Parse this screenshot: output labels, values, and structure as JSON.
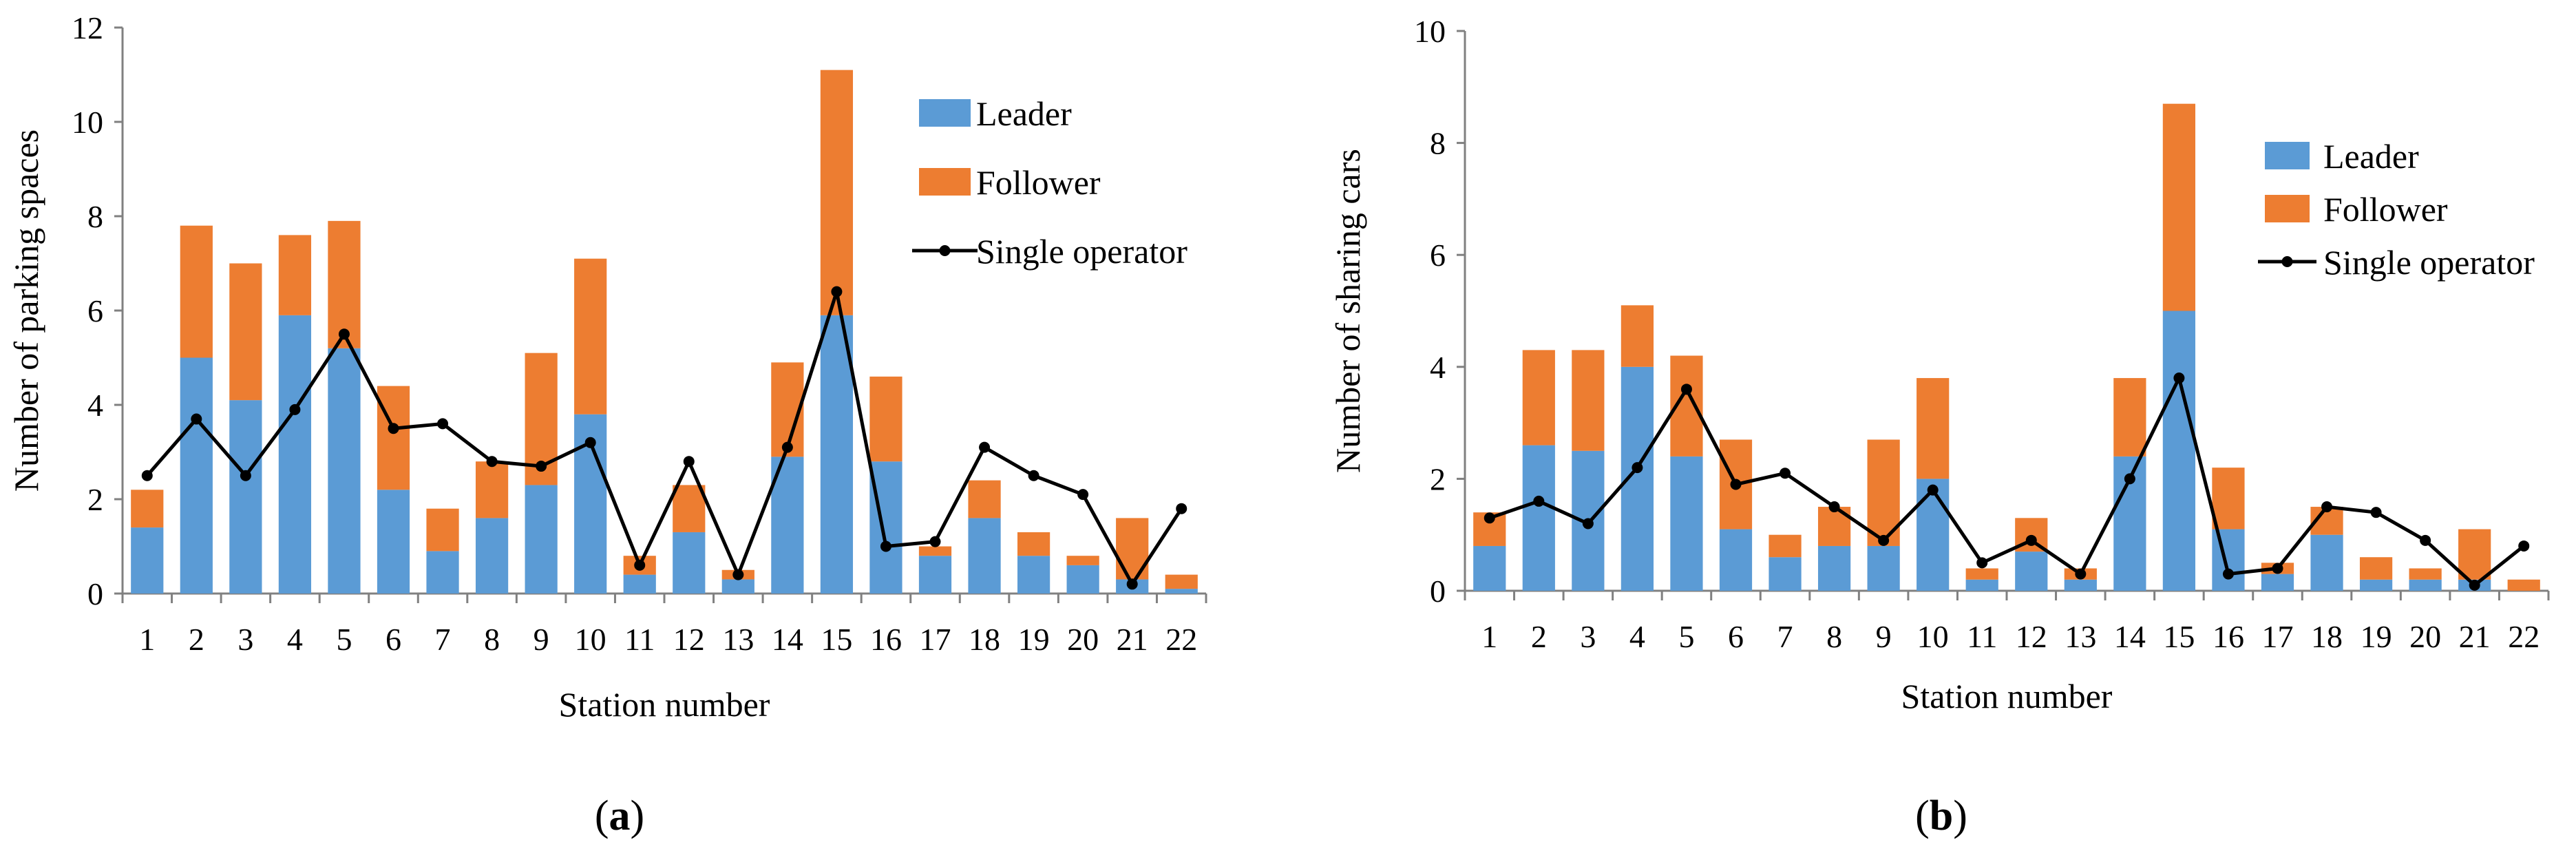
{
  "colors": {
    "leader": "#5b9bd5",
    "follower": "#ed7d31",
    "single": "#000000",
    "axis": "#808080"
  },
  "chart_data": [
    {
      "id": "a",
      "type": "bar",
      "stacked": true,
      "xlabel": "Station number",
      "ylabel": "Number of parking spaces",
      "ylim": [
        0,
        12
      ],
      "yticks": [
        0,
        2,
        4,
        6,
        8,
        10,
        12
      ],
      "categories": [
        "1",
        "2",
        "3",
        "4",
        "5",
        "6",
        "7",
        "8",
        "9",
        "10",
        "11",
        "12",
        "13",
        "14",
        "15",
        "16",
        "17",
        "18",
        "19",
        "20",
        "21",
        "22"
      ],
      "series": [
        {
          "name": "Leader",
          "kind": "bar",
          "values": [
            1.4,
            5.0,
            4.1,
            5.9,
            5.2,
            2.2,
            0.9,
            1.6,
            2.3,
            3.8,
            0.4,
            1.3,
            0.3,
            2.9,
            5.9,
            2.8,
            0.8,
            1.6,
            0.8,
            0.6,
            0.3,
            0.1
          ]
        },
        {
          "name": "Follower",
          "kind": "bar",
          "values": [
            0.8,
            2.8,
            2.9,
            1.7,
            2.7,
            2.2,
            0.9,
            1.2,
            2.8,
            3.3,
            0.4,
            1.0,
            0.2,
            2.0,
            5.2,
            1.8,
            0.2,
            0.8,
            0.5,
            0.2,
            1.3,
            0.3
          ]
        },
        {
          "name": "Single operator",
          "kind": "line",
          "values": [
            2.5,
            3.7,
            2.5,
            3.9,
            5.5,
            3.5,
            3.6,
            2.8,
            2.7,
            3.2,
            0.6,
            2.8,
            0.4,
            3.1,
            6.4,
            1.0,
            1.1,
            3.1,
            2.5,
            2.1,
            0.2,
            1.8
          ]
        }
      ],
      "legend": {
        "placement": "top-right",
        "items": [
          "Leader",
          "Follower",
          "Single operator"
        ]
      },
      "caption": {
        "open": "(",
        "letter": "a",
        "close": ")"
      }
    },
    {
      "id": "b",
      "type": "bar",
      "stacked": true,
      "xlabel": "Station number",
      "ylabel": "Number of sharing cars",
      "ylim": [
        0,
        10
      ],
      "yticks": [
        0,
        2,
        4,
        6,
        8,
        10
      ],
      "categories": [
        "1",
        "2",
        "3",
        "4",
        "5",
        "6",
        "7",
        "8",
        "9",
        "10",
        "11",
        "12",
        "13",
        "14",
        "15",
        "16",
        "17",
        "18",
        "19",
        "20",
        "21",
        "22"
      ],
      "series": [
        {
          "name": "Leader",
          "kind": "bar",
          "values": [
            0.8,
            2.6,
            2.5,
            4.0,
            2.4,
            1.1,
            0.6,
            0.8,
            0.8,
            2.0,
            0.2,
            0.7,
            0.2,
            2.4,
            5.0,
            1.1,
            0.3,
            1.0,
            0.2,
            0.2,
            0.2,
            0.0
          ]
        },
        {
          "name": "Follower",
          "kind": "bar",
          "values": [
            0.6,
            1.7,
            1.8,
            1.1,
            1.8,
            1.6,
            0.4,
            0.7,
            1.9,
            1.8,
            0.2,
            0.6,
            0.2,
            1.4,
            3.7,
            1.1,
            0.2,
            0.5,
            0.4,
            0.2,
            0.9,
            0.2
          ]
        },
        {
          "name": "Single operator",
          "kind": "line",
          "values": [
            1.3,
            1.6,
            1.2,
            2.2,
            3.6,
            1.9,
            2.1,
            1.5,
            0.9,
            1.8,
            0.5,
            0.9,
            0.3,
            2.0,
            3.8,
            0.3,
            0.4,
            1.5,
            1.4,
            0.9,
            0.1,
            0.8
          ]
        }
      ],
      "legend": {
        "placement": "top-right",
        "items": [
          "Leader",
          "Follower",
          "Single operator"
        ]
      },
      "caption": {
        "open": "(",
        "letter": "b",
        "close": ")"
      }
    }
  ]
}
